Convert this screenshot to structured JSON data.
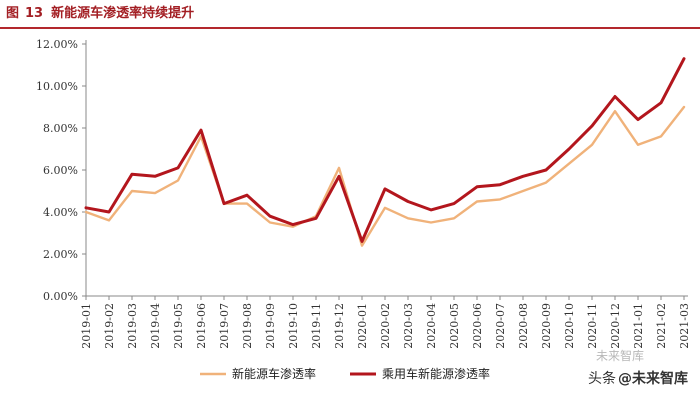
{
  "header": {
    "label": "图",
    "number": "13",
    "title": "新能源车渗透率持续提升"
  },
  "watermark": {
    "text": "头条",
    "handle": "@未来智库",
    "faint": "未来智库"
  },
  "chart_data": {
    "type": "line",
    "x": [
      "2019-01",
      "2019-02",
      "2019-03",
      "2019-04",
      "2019-05",
      "2019-06",
      "2019-07",
      "2019-08",
      "2019-09",
      "2019-10",
      "2019-11",
      "2019-12",
      "2020-01",
      "2020-02",
      "2020-03",
      "2020-04",
      "2020-05",
      "2020-06",
      "2020-07",
      "2020-08",
      "2020-09",
      "2020-10",
      "2020-11",
      "2020-12",
      "2021-01",
      "2021-02",
      "2021-03"
    ],
    "ylim": [
      0,
      12
    ],
    "yticks": [
      "0.00%",
      "2.00%",
      "4.00%",
      "6.00%",
      "8.00%",
      "10.00%",
      "12.00%"
    ],
    "grid": false,
    "legend": "bottom",
    "series": [
      {
        "name": "新能源车渗透率",
        "color": "#f0b27a",
        "values": [
          4.0,
          3.6,
          5.0,
          4.9,
          5.5,
          7.6,
          4.4,
          4.4,
          3.5,
          3.3,
          3.8,
          6.1,
          2.4,
          4.2,
          3.7,
          3.5,
          3.7,
          4.5,
          4.6,
          5.0,
          5.4,
          6.3,
          7.2,
          8.8,
          7.2,
          7.6,
          9.0
        ]
      },
      {
        "name": "乘用车新能源渗透率",
        "color": "#b3161d",
        "values": [
          4.2,
          4.0,
          5.8,
          5.7,
          6.1,
          7.9,
          4.4,
          4.8,
          3.8,
          3.4,
          3.7,
          5.7,
          2.6,
          5.1,
          4.5,
          4.1,
          4.4,
          5.2,
          5.3,
          5.7,
          6.0,
          7.0,
          8.1,
          9.5,
          8.4,
          9.2,
          11.3
        ]
      }
    ]
  }
}
